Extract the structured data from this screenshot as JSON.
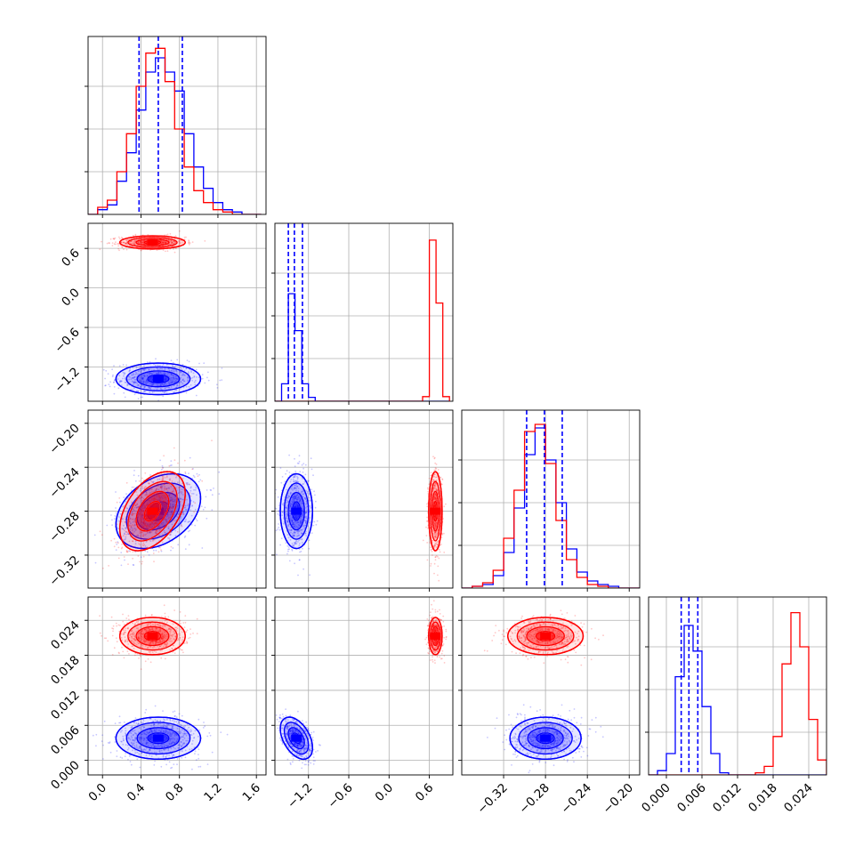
{
  "chart_data": {
    "type": "corner",
    "series": [
      {
        "name": "",
        "color": "#0000ff"
      },
      {
        "name": "",
        "color": "#ff0000"
      }
    ],
    "params": [
      {
        "xlim": [
          -0.15,
          1.7
        ],
        "ticks": [
          0.0,
          0.4,
          0.8,
          1.2,
          1.6
        ],
        "tick_labels": [
          "0.0",
          "0.4",
          "0.8",
          "1.2",
          "1.6"
        ]
      },
      {
        "xlim": [
          -1.7,
          0.95
        ],
        "ticks": [
          -1.2,
          -0.6,
          0.0,
          0.6
        ],
        "tick_labels": [
          "−1.2",
          "−0.6",
          "0.0",
          "0.6"
        ]
      },
      {
        "xlim": [
          -0.36,
          -0.19
        ],
        "ticks": [
          -0.32,
          -0.28,
          -0.24,
          -0.2
        ],
        "tick_labels": [
          "−0.32",
          "−0.28",
          "−0.24",
          "−0.20"
        ]
      },
      {
        "xlim": [
          -0.003,
          0.027
        ],
        "ticks": [
          0.0,
          0.006,
          0.012,
          0.018,
          0.024
        ],
        "tick_labels": [
          "0.000",
          "0.006",
          "0.012",
          "0.018",
          "0.024"
        ]
      }
    ],
    "y_axes": {
      "1": {
        "ylim": [
          -1.72,
          0.98
        ],
        "ticks": [
          -1.2,
          -0.6,
          0.0,
          0.6
        ],
        "tick_labels": [
          "−1.2",
          "−0.6",
          "0.0",
          "0.6"
        ]
      },
      "2": {
        "ylim": [
          -0.35,
          -0.188
        ],
        "ticks": [
          -0.32,
          -0.28,
          -0.24,
          -0.2
        ],
        "tick_labels": [
          "−0.32",
          "−0.28",
          "−0.24",
          "−0.20"
        ]
      },
      "3": {
        "ylim": [
          -0.0025,
          0.028
        ],
        "ticks": [
          0.0,
          0.006,
          0.012,
          0.018,
          0.024
        ],
        "tick_labels": [
          "0.000",
          "0.006",
          "0.012",
          "0.018",
          "0.024"
        ]
      }
    },
    "posteriors": {
      "blue": {
        "mean": [
          0.58,
          -1.38,
          -0.28,
          0.0038
        ],
        "sd": [
          0.22,
          0.12,
          0.017,
          0.0018
        ],
        "corr_01": 0.0,
        "corr_02": 0.35,
        "corr_12": 0.0,
        "corr_03": 0.0,
        "corr_13": -0.45,
        "corr_23": 0.0
      },
      "red": {
        "mean": [
          0.52,
          0.69,
          -0.28,
          0.0213
        ],
        "sd": [
          0.17,
          0.05,
          0.018,
          0.0016
        ],
        "corr_01": 0.0,
        "corr_02": 0.45,
        "corr_12": 0.0,
        "corr_03": 0.0,
        "corr_13": 0.0,
        "corr_23": 0.0
      }
    },
    "histograms": {
      "0": {
        "bin_edges": [
          -0.15,
          -0.05,
          0.05,
          0.15,
          0.25,
          0.35,
          0.45,
          0.55,
          0.65,
          0.75,
          0.85,
          0.95,
          1.05,
          1.15,
          1.25,
          1.35,
          1.45,
          1.55,
          1.65
        ],
        "blue": [
          0,
          2,
          4,
          14,
          26,
          44,
          60,
          66,
          60,
          52,
          34,
          20,
          11,
          5,
          2,
          1,
          0,
          0
        ],
        "red": [
          0,
          3,
          6,
          18,
          34,
          54,
          68,
          70,
          56,
          36,
          20,
          10,
          5,
          2,
          1,
          0,
          0,
          0
        ],
        "quantiles_blue": [
          0.38,
          0.58,
          0.83
        ],
        "ymax": 72
      },
      "1": {
        "bin_edges": [
          -1.7,
          -1.6,
          -1.5,
          -1.4,
          -1.3,
          -1.2,
          -1.1,
          -1.0,
          0.4,
          0.5,
          0.6,
          0.7,
          0.8,
          0.9
        ],
        "blue": [
          0.0,
          4.5,
          27.7,
          18.2,
          4.5,
          1.0,
          0.0,
          0.0,
          0.0,
          0.0,
          0.0,
          0.0,
          0.0
        ],
        "red": [
          0.0,
          0.0,
          0.0,
          0.0,
          0.0,
          0.0,
          0.0,
          0.0,
          0.0,
          1.2,
          41.5,
          25.3,
          1.2
        ],
        "quantiles_blue": [
          -1.5,
          -1.41,
          -1.29
        ],
        "ymax": 44
      },
      "2": {
        "bin_edges": [
          -0.36,
          -0.35,
          -0.34,
          -0.33,
          -0.32,
          -0.31,
          -0.3,
          -0.29,
          -0.28,
          -0.27,
          -0.26,
          -0.25,
          -0.24,
          -0.23,
          -0.22,
          -0.21,
          -0.2,
          -0.19
        ],
        "blue": [
          0,
          1,
          2,
          7,
          20,
          45,
          75,
          90,
          72,
          48,
          22,
          9,
          4,
          2,
          1,
          0,
          0
        ],
        "red": [
          0,
          1,
          3,
          10,
          28,
          55,
          88,
          92,
          70,
          38,
          16,
          6,
          2,
          1,
          0,
          0,
          0
        ],
        "quantiles_blue": [
          -0.298,
          -0.281,
          -0.264
        ],
        "ymax": 96
      },
      "3": {
        "bin_edges": [
          -0.003,
          -0.0015,
          0.0,
          0.0015,
          0.003,
          0.0045,
          0.006,
          0.0075,
          0.009,
          0.0105,
          0.012,
          0.0135,
          0.015,
          0.0165,
          0.018,
          0.0195,
          0.021,
          0.0225,
          0.024,
          0.0255,
          0.027
        ],
        "blue": [
          0,
          2,
          10,
          46,
          70,
          58,
          32,
          10,
          1,
          0,
          0,
          0,
          0,
          0,
          0,
          0,
          0,
          0,
          0,
          0
        ],
        "red": [
          0,
          0,
          0,
          0,
          0,
          0,
          0,
          0,
          0,
          0,
          0,
          0,
          1,
          4,
          18,
          52,
          76,
          60,
          26,
          7
        ],
        "quantiles_blue": [
          0.0025,
          0.0038,
          0.0053
        ],
        "ymax": 80
      }
    },
    "grid": true
  }
}
